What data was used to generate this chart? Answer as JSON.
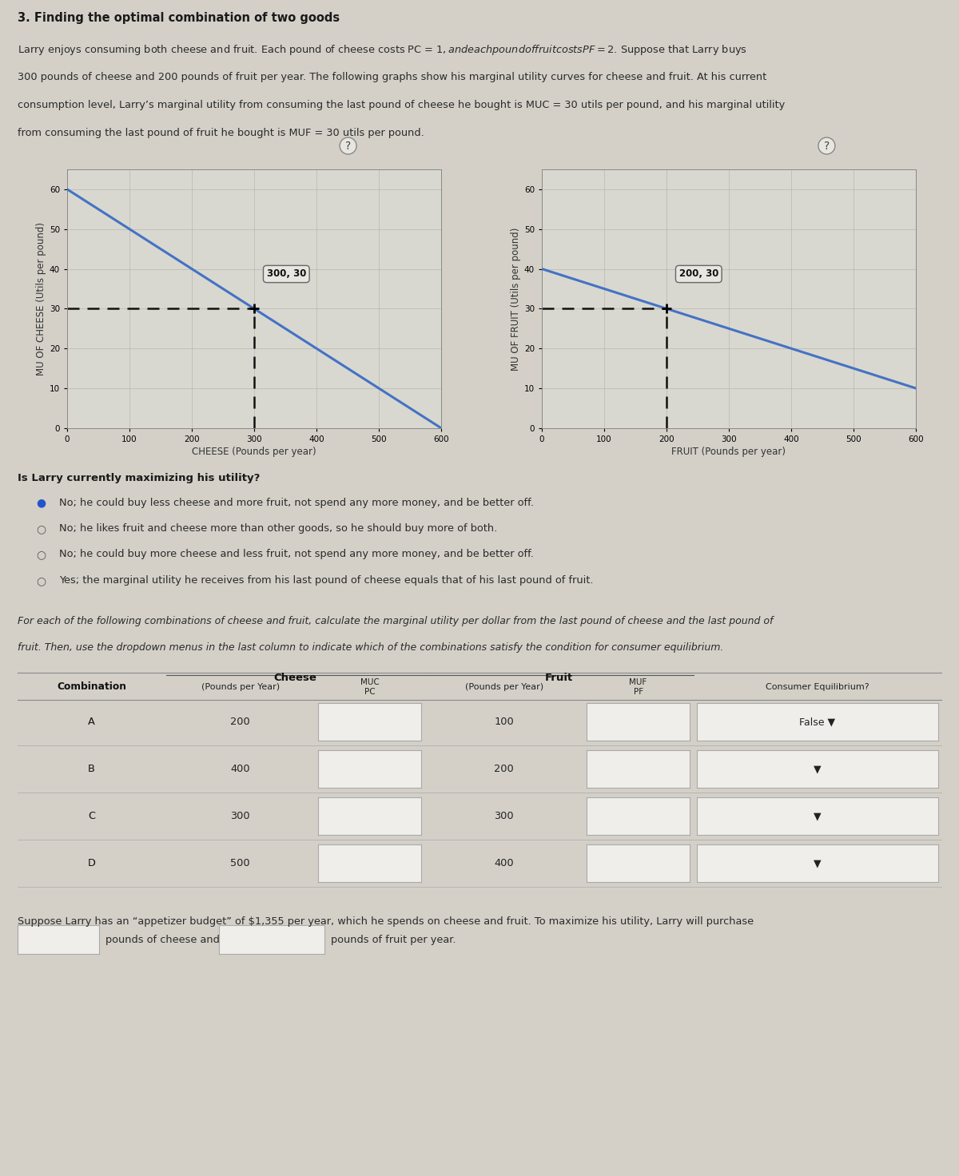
{
  "title": "3. Finding the optimal combination of two goods",
  "bg_color": "#d4d0c8",
  "plot_panel_bg": "#e0dcd4",
  "plot_bg": "#d8d8d0",
  "intro_lines": [
    "Larry enjoys consuming both cheese and fruit. Each pound of cheese costs PC = $1, and each pound of fruit costs PF = $2. Suppose that Larry buys",
    "300 pounds of cheese and 200 pounds of fruit per year. The following graphs show his marginal utility curves for cheese and fruit. At his current",
    "consumption level, Larry’s marginal utility from consuming the last pound of cheese he bought is MUC = 30 utils per pound, and his marginal utility",
    "from consuming the last pound of fruit he bought is MUF = 30 utils per pound."
  ],
  "cheese_line_x": [
    0,
    600
  ],
  "cheese_line_y": [
    60,
    0
  ],
  "cheese_point_x": 300,
  "cheese_point_y": 30,
  "cheese_label": "300, 30",
  "cheese_xlabel": "CHEESE (Pounds per year)",
  "cheese_ylabel": "MU OF CHEESE (Utils per pound)",
  "fruit_line_x": [
    0,
    600
  ],
  "fruit_line_y": [
    40,
    10
  ],
  "fruit_point_x": 200,
  "fruit_point_y": 30,
  "fruit_label": "200, 30",
  "fruit_xlabel": "FRUIT (Pounds per year)",
  "fruit_ylabel": "MU OF FRUIT (Utils per pound)",
  "axis_lim": [
    0,
    600
  ],
  "axis_ylim": [
    0,
    65
  ],
  "xticks": [
    0,
    100,
    200,
    300,
    400,
    500,
    600
  ],
  "yticks": [
    0,
    10,
    20,
    30,
    40,
    50,
    60
  ],
  "question1": "Is Larry currently maximizing his utility?",
  "radio_options": [
    "No; he could buy less cheese and more fruit, not spend any more money, and be better off.",
    "No; he likes fruit and cheese more than other goods, so he should buy more of both.",
    "No; he could buy more cheese and less fruit, not spend any more money, and be better off.",
    "Yes; the marginal utility he receives from his last pound of cheese equals that of his last pound of fruit."
  ],
  "selected_radio": 0,
  "italic_lines": [
    "For each of the following combinations of cheese and fruit, calculate the marginal utility per dollar from the last pound of cheese and the last pound of",
    "fruit. Then, use the dropdown menus in the last column to indicate which of the combinations satisfy the condition for consumer equilibrium."
  ],
  "table_combinations": [
    "A",
    "B",
    "C",
    "D"
  ],
  "table_cheese_lbs": [
    200,
    400,
    300,
    500
  ],
  "table_fruit_lbs": [
    100,
    200,
    300,
    400
  ],
  "table_dropdown_a": "False ▼",
  "table_dropdowns": [
    "▼",
    "▼",
    "▼"
  ],
  "footer_line1": "Suppose Larry has an “appetizer budget” of $1,355 per year, which he spends on cheese and fruit. To maximize his utility, Larry will purchase",
  "footer_text2": "pounds of cheese and",
  "footer_text3": "pounds of fruit per year.",
  "line_color": "#4472c4",
  "dashed_color": "#111111",
  "sep_color": "#b0a060",
  "header_bg": "#c8c4bc",
  "row_colors": [
    "#e8e4dc",
    "#dcdad2"
  ],
  "input_bg": "#f0eeea",
  "input_border": "#aaaaaa"
}
